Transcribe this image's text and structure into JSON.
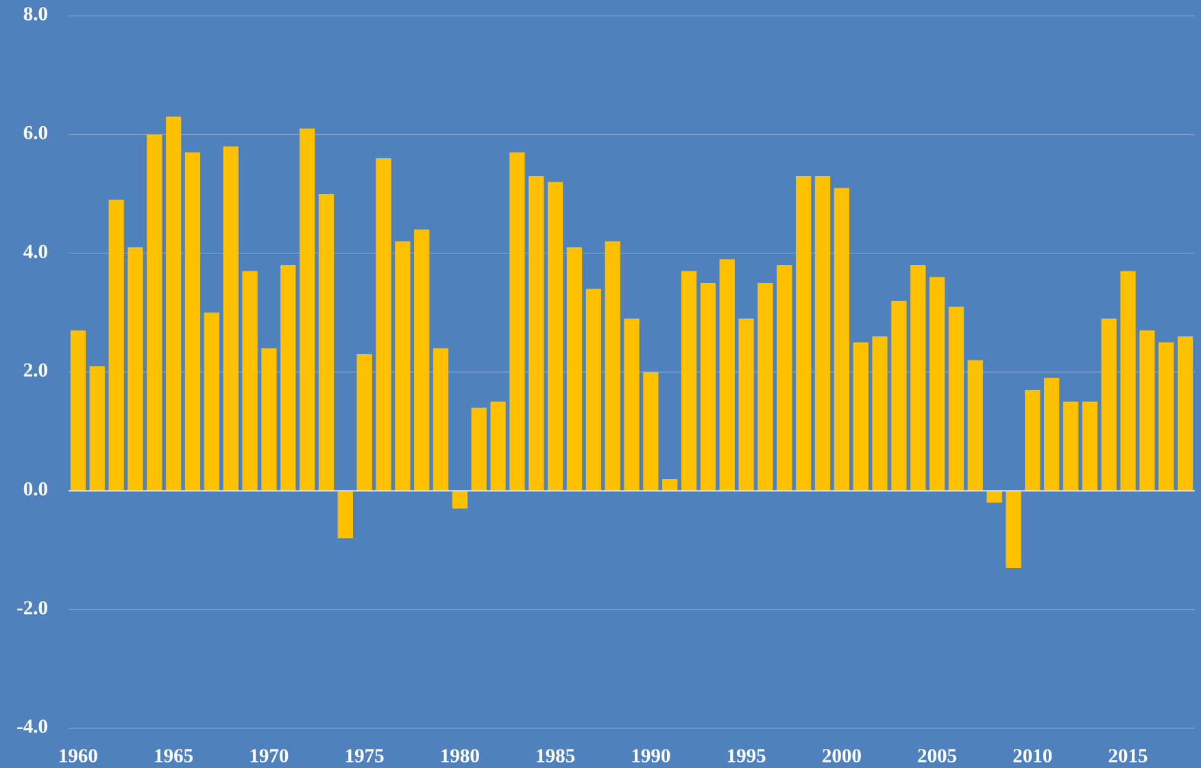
{
  "chart_data": {
    "type": "bar",
    "categories": [
      "1960",
      null,
      null,
      null,
      null,
      "1965",
      null,
      null,
      null,
      null,
      "1970",
      null,
      null,
      null,
      null,
      "1975",
      null,
      null,
      null,
      null,
      "1980",
      null,
      null,
      null,
      null,
      "1985",
      null,
      null,
      null,
      null,
      "1990",
      null,
      null,
      null,
      null,
      "1995",
      null,
      null,
      null,
      null,
      "2000",
      null,
      null,
      null,
      null,
      "2005",
      null,
      null,
      null,
      null,
      "2010",
      null,
      null,
      null,
      null,
      "2015",
      null,
      null,
      null
    ],
    "values": [
      2.7,
      2.1,
      4.9,
      4.1,
      6.0,
      6.3,
      5.7,
      3.0,
      5.8,
      3.7,
      2.4,
      3.8,
      6.1,
      5.0,
      -0.8,
      2.3,
      5.6,
      4.2,
      4.4,
      2.4,
      -0.3,
      1.4,
      1.5,
      5.7,
      5.3,
      5.2,
      4.1,
      3.4,
      4.2,
      2.9,
      2.0,
      0.2,
      3.7,
      3.5,
      3.9,
      2.9,
      3.5,
      3.8,
      5.3,
      5.3,
      5.1,
      2.5,
      2.6,
      3.2,
      3.8,
      3.6,
      3.1,
      2.2,
      -0.2,
      -1.3,
      1.7,
      1.9,
      1.5,
      1.5,
      2.9,
      3.7,
      2.7,
      2.5,
      2.6
    ],
    "color": "#ffc000",
    "ylim": [
      -4,
      8
    ],
    "yticks": [
      {
        "value": -4,
        "label": "-4.0"
      },
      {
        "value": -2,
        "label": "-2.0"
      },
      {
        "value": 0,
        "label": "0.0"
      },
      {
        "value": 2,
        "label": "2.0"
      },
      {
        "value": 4,
        "label": "4.0"
      },
      {
        "value": 6,
        "label": "6.0"
      },
      {
        "value": 8,
        "label": "8.0"
      }
    ],
    "grid": true
  }
}
